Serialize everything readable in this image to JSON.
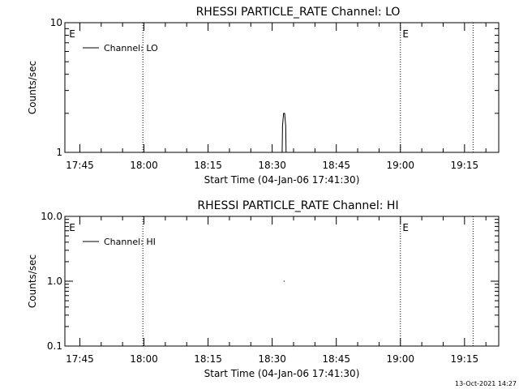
{
  "footer": {
    "timestamp": "13-Oct-2021 14:27"
  },
  "chart_data": [
    {
      "type": "line",
      "title": "RHESSI PARTICLE_RATE Channel: LO",
      "xlabel": "Start Time (04-Jan-06 17:41:30)",
      "ylabel": "Counts/sec",
      "yscale": "log",
      "xlim": [
        "17:41:30",
        "19:23:00"
      ],
      "ylim": [
        1,
        10
      ],
      "y_ticks": [
        {
          "value": 1,
          "label": "1"
        },
        {
          "value": 10,
          "label": "10"
        }
      ],
      "x_ticks": [
        "17:45",
        "18:00",
        "18:15",
        "18:30",
        "18:45",
        "19:00",
        "19:15"
      ],
      "vlines": [
        "17:59:45",
        "19:00:00",
        "19:17:00"
      ],
      "markers": [
        {
          "x": "17:42:30",
          "label": "E"
        },
        {
          "x": "19:00:30",
          "label": "E"
        }
      ],
      "legend": {
        "position": "top-left",
        "entries": [
          "Channel: LO"
        ]
      },
      "series": [
        {
          "name": "Channel: LO",
          "x": [
            "18:32:20",
            "18:32:25",
            "18:32:40",
            "18:32:55",
            "18:33:10",
            "18:33:15"
          ],
          "y": [
            1,
            1.6,
            2.0,
            2.0,
            1.6,
            1
          ]
        }
      ]
    },
    {
      "type": "line",
      "title": "RHESSI PARTICLE_RATE Channel: HI",
      "xlabel": "Start Time (04-Jan-06 17:41:30)",
      "ylabel": "Counts/sec",
      "yscale": "log",
      "xlim": [
        "17:41:30",
        "19:23:00"
      ],
      "ylim": [
        0.1,
        10
      ],
      "y_ticks": [
        {
          "value": 0.1,
          "label": "0.1"
        },
        {
          "value": 1,
          "label": "1.0"
        },
        {
          "value": 10,
          "label": "10.0"
        }
      ],
      "x_ticks": [
        "17:45",
        "18:00",
        "18:15",
        "18:30",
        "18:45",
        "19:00",
        "19:15"
      ],
      "vlines": [
        "17:59:45",
        "19:00:00",
        "19:17:00"
      ],
      "markers": [
        {
          "x": "17:42:30",
          "label": "E"
        },
        {
          "x": "19:00:30",
          "label": "E"
        }
      ],
      "legend": {
        "position": "top-left",
        "entries": [
          "Channel: HI"
        ]
      },
      "series": [
        {
          "name": "Channel: HI",
          "x": [
            "18:32:40",
            "18:32:55"
          ],
          "y": [
            1,
            1
          ]
        }
      ]
    }
  ]
}
